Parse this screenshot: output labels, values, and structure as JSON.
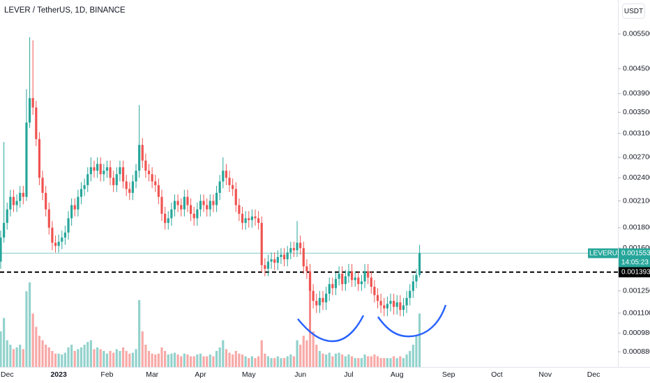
{
  "chart_data": {
    "type": "candlestick",
    "title": "LEVER / TetherUS, 1D, BINANCE",
    "currency": "USDT",
    "symbol": "LEVERUSDT",
    "countdown": "14:05:23",
    "up_color": "#26a69a",
    "down_color": "#ef5350",
    "log": true,
    "ylim": [
      0.000806,
      0.00669
    ],
    "yticks": [
      {
        "value": 0.00088,
        "label": "0.000880"
      },
      {
        "value": 0.00098,
        "label": "0.000980"
      },
      {
        "value": 0.0011,
        "label": "0.001100"
      },
      {
        "value": 0.00125,
        "label": "0.001250"
      },
      {
        "value": 0.0016,
        "label": "0.001600"
      },
      {
        "value": 0.0018,
        "label": "0.001800"
      },
      {
        "value": 0.0021,
        "label": "0.002100"
      },
      {
        "value": 0.0024,
        "label": "0.002400"
      },
      {
        "value": 0.0027,
        "label": "0.002700"
      },
      {
        "value": 0.0031,
        "label": "0.003100"
      },
      {
        "value": 0.0035,
        "label": "0.003500"
      },
      {
        "value": 0.0039,
        "label": "0.003900"
      },
      {
        "value": 0.0045,
        "label": "0.004500"
      },
      {
        "value": 0.0055,
        "label": "0.005500"
      }
    ],
    "levels": [
      {
        "value": 0.001393,
        "color": "#000000"
      }
    ],
    "categories": [
      null,
      null,
      "Dec",
      null,
      null,
      null,
      null,
      null,
      null,
      null,
      null,
      null,
      null,
      null,
      null,
      null,
      null,
      null,
      "2023",
      null,
      null,
      null,
      null,
      null,
      null,
      null,
      null,
      null,
      null,
      null,
      null,
      null,
      null,
      "Feb",
      null,
      null,
      null,
      null,
      null,
      null,
      null,
      null,
      null,
      null,
      null,
      null,
      null,
      "Mar",
      null,
      null,
      null,
      null,
      null,
      null,
      null,
      null,
      null,
      null,
      null,
      null,
      null,
      null,
      "Apr",
      null,
      null,
      null,
      null,
      null,
      null,
      null,
      null,
      null,
      null,
      null,
      null,
      null,
      null,
      "May",
      null,
      null,
      null,
      null,
      null,
      null,
      null,
      null,
      null,
      null,
      null,
      null,
      null,
      null,
      null,
      "Jun",
      null,
      null,
      null,
      null,
      null,
      null,
      null,
      null,
      null,
      null,
      null,
      null,
      null,
      null,
      "Jul",
      null,
      null,
      null,
      null,
      null,
      null,
      null,
      null,
      null,
      null,
      null,
      null,
      null,
      null,
      "Aug",
      null,
      null,
      null,
      null,
      null,
      null,
      null,
      null,
      null,
      null,
      null,
      null,
      null,
      null,
      null,
      "Sep",
      null,
      null,
      null,
      null,
      null,
      null,
      null,
      null,
      null,
      null,
      null,
      null,
      null,
      null,
      "Oct",
      null,
      null,
      null,
      null,
      null,
      null,
      null,
      null,
      null,
      null,
      null,
      null,
      null,
      null,
      "Nov",
      null,
      null,
      null,
      null,
      null,
      null,
      null,
      null,
      null,
      null,
      null,
      null,
      null,
      null,
      "Dec",
      null,
      null,
      null,
      null,
      null,
      null,
      null
    ],
    "open": [
      0.00148,
      0.0017,
      0.00185,
      0.002,
      0.00215,
      0.00205,
      0.0021,
      0.0022,
      0.00215,
      0.0033,
      0.0038,
      0.0036,
      0.003,
      0.0024,
      0.0022,
      0.002,
      0.0018,
      0.00165,
      0.00162,
      0.00166,
      0.0017,
      0.00175,
      0.0019,
      0.00205,
      0.002,
      0.00215,
      0.00225,
      0.0023,
      0.00245,
      0.00255,
      0.0025,
      0.0026,
      0.00245,
      0.0025,
      0.00255,
      0.0024,
      0.0023,
      0.00245,
      0.00255,
      0.00235,
      0.00225,
      0.0022,
      0.00235,
      0.0025,
      0.0029,
      0.00265,
      0.0025,
      0.00245,
      0.00235,
      0.0023,
      0.00215,
      0.00195,
      0.00185,
      0.0019,
      0.002,
      0.0021,
      0.00205,
      0.002,
      0.00215,
      0.00205,
      0.00195,
      0.0019,
      0.002,
      0.0021,
      0.00205,
      0.002,
      0.0021,
      0.00205,
      0.0022,
      0.00235,
      0.0025,
      0.0024,
      0.0023,
      0.00225,
      0.00205,
      0.00195,
      0.00185,
      0.0019,
      0.00188,
      0.00192,
      0.0019,
      0.00185,
      0.00145,
      0.00142,
      0.00148,
      0.0015,
      0.00147,
      0.00152,
      0.00154,
      0.0015,
      0.00156,
      0.0016,
      0.00158,
      0.00165,
      0.0016,
      0.00144,
      0.0014,
      0.00125,
      0.00118,
      0.00115,
      0.0012,
      0.00117,
      0.00123,
      0.0013,
      0.00127,
      0.00134,
      0.00138,
      0.0013,
      0.00136,
      0.0014,
      0.00133,
      0.00135,
      0.0013,
      0.00132,
      0.0014,
      0.00135,
      0.00128,
      0.00122,
      0.00118,
      0.00115,
      0.00113,
      0.00116,
      0.00118,
      0.00114,
      0.00117,
      0.00112,
      0.00115,
      0.0012,
      0.00125,
      0.00132,
      0.00137,
      null,
      null,
      null,
      null,
      null,
      null,
      null,
      null,
      null,
      null,
      null,
      null,
      null,
      null,
      null,
      null,
      null,
      null,
      null,
      null,
      null,
      null,
      null,
      null,
      null,
      null,
      null,
      null,
      null,
      null,
      null,
      null,
      null,
      null,
      null,
      null,
      null,
      null,
      null,
      null,
      null,
      null,
      null,
      null,
      null,
      null,
      null,
      null,
      null,
      null,
      null,
      null,
      null,
      null,
      null,
      null,
      null,
      null,
      null,
      null,
      null
    ],
    "high": [
      0.00177,
      0.00295,
      0.00208,
      0.00224,
      0.00224,
      0.00218,
      0.00229,
      0.00229,
      0.004,
      0.0054,
      0.0053,
      0.00374,
      0.00312,
      0.0025,
      0.00229,
      0.00208,
      0.00187,
      0.00172,
      0.00173,
      0.00177,
      0.00182,
      0.00198,
      0.00213,
      0.00213,
      0.00224,
      0.00234,
      0.00239,
      0.00255,
      0.0027,
      0.00265,
      0.0027,
      0.0027,
      0.0026,
      0.00265,
      0.00265,
      0.0025,
      0.00255,
      0.00265,
      0.00265,
      0.00244,
      0.00234,
      0.00244,
      0.0026,
      0.00365,
      0.00302,
      0.00276,
      0.0026,
      0.00255,
      0.00244,
      0.00239,
      0.00224,
      0.00203,
      0.00198,
      0.00208,
      0.00218,
      0.00218,
      0.00213,
      0.00224,
      0.00224,
      0.00213,
      0.00203,
      0.00208,
      0.00218,
      0.00218,
      0.00213,
      0.00218,
      0.00218,
      0.00229,
      0.00244,
      0.0027,
      0.0026,
      0.0025,
      0.00239,
      0.00234,
      0.00213,
      0.00203,
      0.00198,
      0.00198,
      0.002,
      0.002,
      0.00198,
      0.00192,
      0.00151,
      0.00154,
      0.00156,
      0.00156,
      0.00158,
      0.0016,
      0.0016,
      0.00162,
      0.00166,
      0.00166,
      0.00187,
      0.00172,
      0.00166,
      0.0015,
      0.00146,
      0.0013,
      0.00123,
      0.00125,
      0.00125,
      0.00128,
      0.00135,
      0.00135,
      0.00139,
      0.00144,
      0.00144,
      0.00141,
      0.00146,
      0.00146,
      0.0014,
      0.0014,
      0.00137,
      0.00146,
      0.00146,
      0.0014,
      0.00133,
      0.00127,
      0.00123,
      0.0012,
      0.00121,
      0.00123,
      0.00123,
      0.00122,
      0.00122,
      0.0012,
      0.00125,
      0.0013,
      0.00137,
      0.00142,
      0.00163,
      null,
      null,
      null,
      null,
      null,
      null,
      null,
      null,
      null,
      null,
      null,
      null,
      null,
      null,
      null,
      null,
      null,
      null,
      null,
      null,
      null,
      null,
      null,
      null,
      null,
      null,
      null,
      null,
      null,
      null,
      null,
      null,
      null,
      null,
      null,
      null,
      null,
      null,
      null,
      null,
      null,
      null,
      null,
      null,
      null,
      null,
      null,
      null,
      null,
      null,
      null,
      null,
      null,
      null,
      null,
      null,
      null,
      null,
      null,
      null,
      null
    ],
    "low": [
      0.00142,
      0.00165,
      0.00178,
      0.00192,
      0.00197,
      0.00197,
      0.00202,
      0.00206,
      0.0021,
      0.0032,
      0.00345,
      0.00288,
      0.0023,
      0.00211,
      0.00192,
      0.00173,
      0.00158,
      0.00156,
      0.00156,
      0.00159,
      0.00163,
      0.00168,
      0.00182,
      0.00192,
      0.00192,
      0.00206,
      0.00216,
      0.00221,
      0.00235,
      0.0024,
      0.0024,
      0.00235,
      0.00235,
      0.0024,
      0.0023,
      0.00221,
      0.00221,
      0.00235,
      0.00226,
      0.00216,
      0.00211,
      0.00211,
      0.00226,
      0.0024,
      0.00254,
      0.0024,
      0.00235,
      0.00226,
      0.00221,
      0.00206,
      0.00187,
      0.00178,
      0.00178,
      0.00182,
      0.00192,
      0.00197,
      0.00192,
      0.00192,
      0.00197,
      0.00187,
      0.00182,
      0.00182,
      0.00192,
      0.00197,
      0.00192,
      0.00192,
      0.00197,
      0.00197,
      0.00211,
      0.00226,
      0.0023,
      0.00221,
      0.00216,
      0.00197,
      0.00187,
      0.00178,
      0.00178,
      0.0018,
      0.0018,
      0.00182,
      0.00178,
      0.00139,
      0.00136,
      0.00136,
      0.00142,
      0.00141,
      0.00141,
      0.00146,
      0.00144,
      0.00144,
      0.0015,
      0.00152,
      0.00152,
      0.00154,
      0.00138,
      0.00134,
      0.00098,
      0.00113,
      0.0011,
      0.0011,
      0.00112,
      0.00112,
      0.00118,
      0.00122,
      0.00122,
      0.00129,
      0.00125,
      0.00125,
      0.00131,
      0.00128,
      0.00128,
      0.00125,
      0.00125,
      0.00127,
      0.0013,
      0.00123,
      0.00117,
      0.00113,
      0.0011,
      0.00108,
      0.00108,
      0.00111,
      0.00109,
      0.00109,
      0.00108,
      0.00108,
      0.0011,
      0.00115,
      0.0012,
      0.00127,
      0.00135,
      null,
      null,
      null,
      null,
      null,
      null,
      null,
      null,
      null,
      null,
      null,
      null,
      null,
      null,
      null,
      null,
      null,
      null,
      null,
      null,
      null,
      null,
      null,
      null,
      null,
      null,
      null,
      null,
      null,
      null,
      null,
      null,
      null,
      null,
      null,
      null,
      null,
      null,
      null,
      null,
      null,
      null,
      null,
      null,
      null,
      null,
      null,
      null,
      null,
      null,
      null,
      null,
      null,
      null,
      null,
      null,
      null,
      null,
      null,
      null,
      null
    ],
    "close": [
      0.0017,
      0.00185,
      0.002,
      0.00215,
      0.00205,
      0.0021,
      0.0022,
      0.00215,
      0.0033,
      0.0038,
      0.0036,
      0.003,
      0.0024,
      0.0022,
      0.002,
      0.0018,
      0.00165,
      0.00162,
      0.00166,
      0.0017,
      0.00175,
      0.0019,
      0.00205,
      0.002,
      0.00215,
      0.00225,
      0.0023,
      0.00245,
      0.00255,
      0.0025,
      0.0026,
      0.00245,
      0.0025,
      0.00255,
      0.0024,
      0.0023,
      0.00245,
      0.00255,
      0.00235,
      0.00225,
      0.0022,
      0.00235,
      0.0025,
      0.0029,
      0.00265,
      0.0025,
      0.00245,
      0.00235,
      0.0023,
      0.00215,
      0.00195,
      0.00185,
      0.0019,
      0.002,
      0.0021,
      0.00205,
      0.002,
      0.00215,
      0.00205,
      0.00195,
      0.0019,
      0.002,
      0.0021,
      0.00205,
      0.002,
      0.0021,
      0.00205,
      0.0022,
      0.00235,
      0.0025,
      0.0024,
      0.0023,
      0.00225,
      0.00205,
      0.00195,
      0.00185,
      0.0019,
      0.00188,
      0.00192,
      0.0019,
      0.00185,
      0.00145,
      0.00142,
      0.00148,
      0.0015,
      0.00147,
      0.00152,
      0.00154,
      0.0015,
      0.00156,
      0.0016,
      0.00158,
      0.00165,
      0.0016,
      0.00144,
      0.0014,
      0.00125,
      0.00118,
      0.00115,
      0.0012,
      0.00117,
      0.00123,
      0.0013,
      0.00127,
      0.00134,
      0.00138,
      0.0013,
      0.00136,
      0.0014,
      0.00133,
      0.00135,
      0.0013,
      0.00132,
      0.0014,
      0.00135,
      0.00128,
      0.00122,
      0.00118,
      0.00115,
      0.00113,
      0.00116,
      0.00118,
      0.00114,
      0.00117,
      0.00112,
      0.00115,
      0.0012,
      0.00125,
      0.00132,
      0.00137,
      0.001553,
      null,
      null,
      null,
      null,
      null,
      null,
      null,
      null,
      null,
      null,
      null,
      null,
      null,
      null,
      null,
      null,
      null,
      null,
      null,
      null,
      null,
      null,
      null,
      null,
      null,
      null,
      null,
      null,
      null,
      null,
      null,
      null,
      null,
      null,
      null,
      null,
      null,
      null,
      null,
      null,
      null,
      null,
      null,
      null,
      null,
      null,
      null,
      null,
      null,
      null,
      null,
      null,
      null,
      null,
      null,
      null,
      null,
      null,
      null,
      null,
      null
    ],
    "volume": [
      40,
      55,
      30,
      25,
      20,
      22,
      25,
      20,
      85,
      95,
      60,
      45,
      35,
      30,
      25,
      22,
      18,
      15,
      15,
      14,
      16,
      22,
      25,
      18,
      20,
      22,
      25,
      28,
      30,
      20,
      22,
      20,
      18,
      15,
      18,
      16,
      20,
      18,
      22,
      18,
      15,
      16,
      20,
      75,
      40,
      25,
      18,
      15,
      14,
      15,
      22,
      18,
      14,
      15,
      16,
      14,
      12,
      15,
      14,
      12,
      12,
      14,
      15,
      12,
      12,
      14,
      12,
      18,
      22,
      30,
      20,
      16,
      14,
      18,
      15,
      14,
      12,
      10,
      12,
      10,
      12,
      30,
      15,
      12,
      10,
      10,
      12,
      10,
      10,
      12,
      14,
      12,
      30,
      25,
      35,
      30,
      100,
      40,
      25,
      18,
      15,
      14,
      16,
      12,
      15,
      16,
      14,
      12,
      14,
      12,
      10,
      10,
      10,
      14,
      12,
      12,
      14,
      12,
      10,
      10,
      10,
      10,
      12,
      10,
      12,
      10,
      14,
      18,
      25,
      35,
      60,
      null,
      null,
      null,
      null,
      null,
      null,
      null,
      null,
      null,
      null,
      null,
      null,
      null,
      null,
      null,
      null,
      null,
      null,
      null,
      null,
      null,
      null,
      null,
      null,
      null,
      null,
      null,
      null,
      null,
      null,
      null,
      null,
      null,
      null,
      null,
      null,
      null,
      null,
      null,
      null,
      null,
      null,
      null,
      null,
      null,
      null,
      null,
      null,
      null,
      null,
      null,
      null,
      null,
      null,
      null,
      null,
      null,
      null,
      null,
      null,
      null
    ]
  }
}
